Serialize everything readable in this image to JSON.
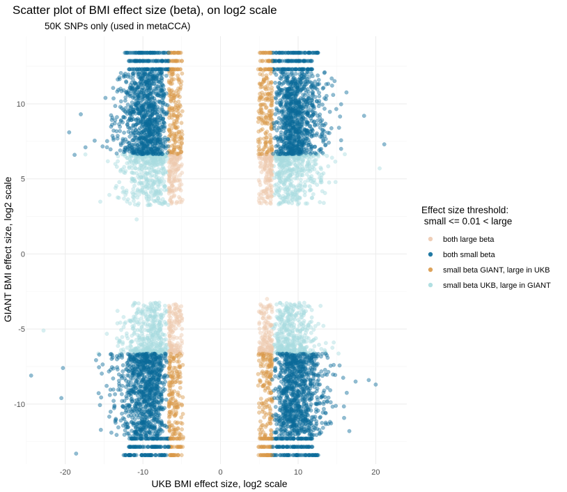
{
  "chart_data": {
    "type": "scatter",
    "title": "Scatter plot of BMI effect size (beta), on log2 scale",
    "subtitle": "50K SNPs only (used in metaCCA)",
    "xlabel": "UKB BMI effect size, log2 scale",
    "ylabel": "GIANT BMI effect size, log2 scale",
    "xlim": [
      -25,
      24
    ],
    "ylim": [
      -14,
      14.5
    ],
    "x_ticks": [
      -20,
      -10,
      0,
      10,
      20
    ],
    "x_tick_labels": [
      "-20",
      "-10",
      "0",
      "10",
      "20"
    ],
    "y_ticks": [
      -10,
      -5,
      0,
      5,
      10
    ],
    "y_tick_labels": [
      "-10",
      "-5",
      "0",
      "5",
      "10"
    ],
    "grid": true,
    "threshold_log2": 6.64,
    "point_alpha": 0.45,
    "legend": {
      "title_line1": "Effect size threshold:",
      "title_line2": " small <= 0.01 < large",
      "position": "right",
      "entries": [
        {
          "label": "both large beta",
          "color": "#EDC9AF"
        },
        {
          "label": "both small beta",
          "color": "#0A6B9A"
        },
        {
          "label": "small beta GIANT, large in UKB",
          "color": "#D9994A"
        },
        {
          "label": "small beta UKB, large in GIANT",
          "color": "#A9DCDF"
        }
      ]
    },
    "series": [
      {
        "name": "both small beta",
        "color": "#0A6B9A",
        "note": "dense clusters |x| in [6.64, ~13], |y| in [6.64, ~13.5], four quadrants, with horizontal bands at y = ±12.3, ±12.9, ±13.4",
        "outliers": [
          {
            "x": -24.4,
            "y": -8.1
          },
          {
            "x": -20.3,
            "y": -7.6
          },
          {
            "x": -20.5,
            "y": -9.6
          },
          {
            "x": -19.5,
            "y": 8.1
          },
          {
            "x": -18.0,
            "y": 9.3
          },
          {
            "x": -18.8,
            "y": 6.6
          },
          {
            "x": 21.1,
            "y": 7.3
          },
          {
            "x": 19.1,
            "y": -8.4
          },
          {
            "x": 20.0,
            "y": -8.7
          },
          {
            "x": 17.4,
            "y": -8.5
          },
          {
            "x": -18.6,
            "y": -13.3
          },
          {
            "x": 18.5,
            "y": 9.2
          },
          {
            "x": -17.4,
            "y": 7.1
          },
          {
            "x": 16.6,
            "y": -11.8
          }
        ]
      },
      {
        "name": "small beta GIANT, large in UKB",
        "color": "#D9994A",
        "note": "narrow vertical strips |x| in [~4.6, 6.64], |y| >= 6.64",
        "outliers": [
          {
            "x": 5.5,
            "y": 12.2
          },
          {
            "x": -4.8,
            "y": -12.2
          }
        ]
      },
      {
        "name": "small beta UKB, large in GIANT",
        "color": "#A9DCDF",
        "note": "horizontal blobs |y| in [~3, 6.64], |x| >= 6.64",
        "outliers": [
          {
            "x": -22.8,
            "y": -5.1
          },
          {
            "x": -10.8,
            "y": 2.3
          },
          {
            "x": 20.5,
            "y": 5.7
          }
        ]
      },
      {
        "name": "both large beta",
        "color": "#EDC9AF",
        "note": "small patches |x| in [~5, 6.64], |y| in [~3, 6.64]",
        "outliers": [
          {
            "x": 6.0,
            "y": -3.0
          },
          {
            "x": -4.9,
            "y": 3.6
          }
        ]
      }
    ]
  }
}
